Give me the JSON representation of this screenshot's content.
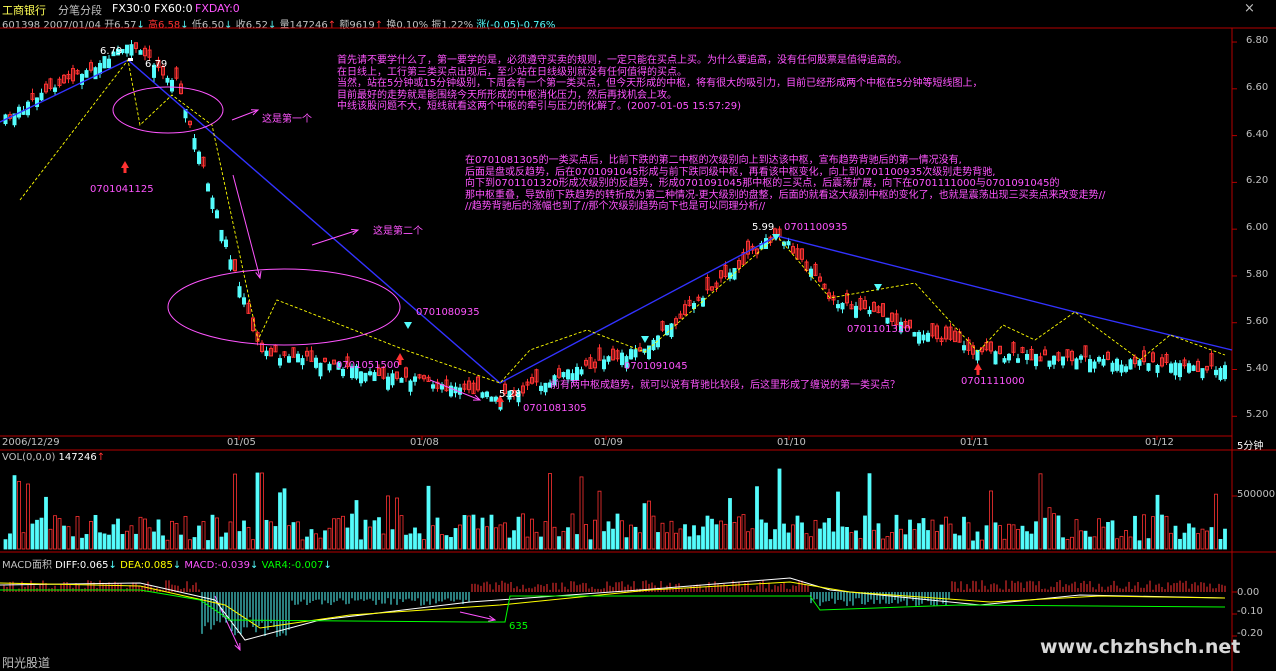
{
  "header": {
    "stock_name": "工商银行",
    "mode": "分笔分段",
    "fx30": "FX30:0",
    "fx60": "FX60:0",
    "fxday": "FXDAY:0",
    "code_date": "601398 2007/01/04",
    "open": "开6.57",
    "high": "高6.58",
    "low": "低6.50",
    "close": "收6.52",
    "volume": "量147246",
    "amount": "额9619",
    "turnover": "换0.10%",
    "amplitude": "振1.22%",
    "change": "涨(-0.05)-0.76%"
  },
  "window_controls": {
    "close": "×"
  },
  "price_axis": {
    "labels": [
      "6.80",
      "6.60",
      "6.40",
      "6.20",
      "6.00",
      "5.80",
      "5.60",
      "5.40",
      "5.20"
    ],
    "ylim": [
      5.12,
      6.86
    ]
  },
  "date_axis": {
    "labels": [
      "2006/12/29",
      "01/05",
      "01/08",
      "01/09",
      "01/10",
      "01/11",
      "01/12"
    ],
    "period": "5分钟"
  },
  "price_marks": {
    "high": "6.79",
    "high_right": "6.79",
    "low": "5.28",
    "low2": "5.99"
  },
  "point_labels": [
    "0701041125",
    "0701080935",
    "0701051500",
    "0701081305",
    "0701091045",
    "0701100935",
    "0701101320",
    "0701111000"
  ],
  "annotations": {
    "first_center": "这是第一个",
    "second_center": "这是第二个",
    "bottom_note": "前有两中枢成趋势，就可以说有背驰比较段，后这里形成了缠说的第一类买点？",
    "top_block": [
      "首先请不要学什么了，第一要学的是，必须遵守买卖的规则，一定只能在买点上买。为什么要追高，没有任何股票是值得追高的。",
      "在日线上，工行第三类买点出现后，至少站在日线级别就没有任何值得的买点。",
      "当然，站在5分钟或15分钟级别，下周会有一个第一类买点，但今天形成的中枢，将有很大的吸引力，目前已经形成两个中枢在5分钟等短线图上，",
      "目前最好的走势就是能围绕今天所形成的中枢消化压力，然后再找机会上攻。",
      "中线该股问题不大，短线就看这两个中枢的牵引与压力的化解了。(2007-01-05 15:57:29)"
    ],
    "mid_block": [
      "在0701081305的一类买点后，比前下跌的第二中枢的次级别向上到达该中枢，宣布趋势背驰后的第一情况没有,",
      "后面是盘或反趋势，后在0701091045形成与前下跌同级中枢，再看该中枢变化，向上到0701100935次级别走势背驰,",
      "向下到0701101320形成次级别的反趋势，形成0701091045那中枢的三买点，后震荡扩展，向下在0701111000与0701091045的",
      "那中枢重叠，导致前下跌趋势的转折成为第二种情况-更大级别的盘整，后面的就看这大级别中枢的变化了，也就是震荡出现三买卖点来改变走势//",
      "//趋势背驰后的涨幅也到了//那个次级别趋势向下也是可以同理分析//"
    ]
  },
  "volume_panel": {
    "title": "VOL(0,0,0)",
    "value": "147246",
    "axis": [
      "500000"
    ]
  },
  "macd_panel": {
    "title": "MACD面积",
    "diff": "DIFF:0.065",
    "dea": "DEA:0.085",
    "macd": "MACD:-0.039",
    "var4": "VAR4:-0.007",
    "axis": [
      "0.00",
      "-0.10",
      "-0.20"
    ],
    "note": "635"
  },
  "footer": {
    "label": "阳光股道",
    "watermark": "www.chzhshch.net"
  },
  "colors": {
    "up": "#ff3232",
    "down": "#54fcfc",
    "wire": "#3232ff",
    "annotation": "#ff55ff",
    "axis": "#b40000",
    "diff": "#ffffff",
    "dea": "#ffff00",
    "var4": "#00ff00"
  },
  "chart_data": {
    "type": "candlestick",
    "interval": "5分钟",
    "price_points": [
      {
        "label": "2006/12/29",
        "y": 6.47
      },
      {
        "label": "6.79",
        "y": 6.79
      },
      {
        "label": "0701041125",
        "y": 6.63
      },
      {
        "label": "0701051500",
        "y": 5.48
      },
      {
        "label": "0701081305",
        "y": 5.28
      },
      {
        "label": "0701091045",
        "y": 5.5
      },
      {
        "label": "0701100935",
        "y": 5.99
      },
      {
        "label": "0701101320",
        "y": 5.7
      },
      {
        "label": "0701111000",
        "y": 5.47
      },
      {
        "label": "01/12",
        "y": 5.4
      }
    ]
  }
}
